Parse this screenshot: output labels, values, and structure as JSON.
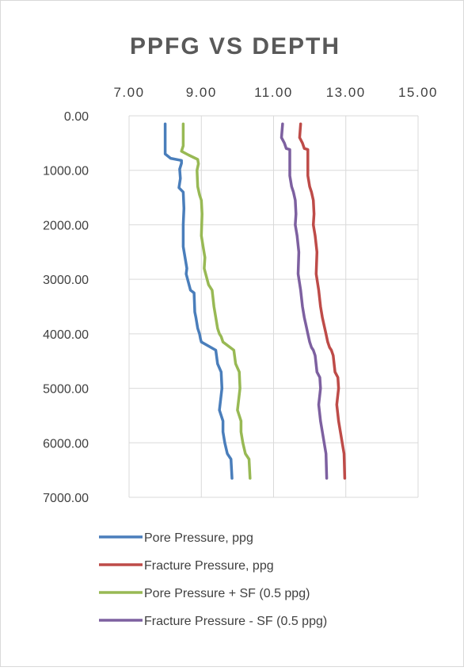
{
  "chart_data": {
    "type": "line",
    "title": "PPFG VS DEPTH",
    "x_axis": {
      "position": "top",
      "range": [
        7,
        15
      ],
      "ticks": [
        "7.00",
        "9.00",
        "11.00",
        "13.00",
        "15.00"
      ],
      "tick_values": [
        7,
        9,
        11,
        13,
        15
      ]
    },
    "y_axis": {
      "reversed": true,
      "range": [
        0,
        7000
      ],
      "ticks": [
        "0.00",
        "1000.00",
        "2000.00",
        "3000.00",
        "4000.00",
        "5000.00",
        "6000.00",
        "7000.00"
      ],
      "tick_values": [
        0,
        1000,
        2000,
        3000,
        4000,
        5000,
        6000,
        7000
      ]
    },
    "grid": true,
    "legend": "bottom",
    "series": [
      {
        "name": "Pore Pressure, ppg",
        "color": "#4a7ebb",
        "points": [
          [
            8.0,
            150
          ],
          [
            8.0,
            700
          ],
          [
            8.15,
            780
          ],
          [
            8.45,
            820
          ],
          [
            8.45,
            870
          ],
          [
            8.4,
            980
          ],
          [
            8.42,
            1150
          ],
          [
            8.38,
            1320
          ],
          [
            8.5,
            1400
          ],
          [
            8.52,
            1700
          ],
          [
            8.5,
            2000
          ],
          [
            8.5,
            2400
          ],
          [
            8.55,
            2600
          ],
          [
            8.6,
            2800
          ],
          [
            8.58,
            2900
          ],
          [
            8.7,
            3200
          ],
          [
            8.8,
            3250
          ],
          [
            8.82,
            3600
          ],
          [
            8.85,
            3700
          ],
          [
            8.9,
            3900
          ],
          [
            8.95,
            4000
          ],
          [
            8.98,
            4100
          ],
          [
            9.0,
            4150
          ],
          [
            9.4,
            4300
          ],
          [
            9.45,
            4550
          ],
          [
            9.55,
            4700
          ],
          [
            9.57,
            5000
          ],
          [
            9.5,
            5400
          ],
          [
            9.6,
            5600
          ],
          [
            9.6,
            5800
          ],
          [
            9.65,
            6000
          ],
          [
            9.72,
            6200
          ],
          [
            9.82,
            6300
          ],
          [
            9.85,
            6650
          ]
        ]
      },
      {
        "name": "Fracture Pressure, ppg",
        "color": "#be4b48",
        "points": [
          [
            11.75,
            150
          ],
          [
            11.72,
            400
          ],
          [
            11.8,
            500
          ],
          [
            11.85,
            600
          ],
          [
            11.95,
            620
          ],
          [
            11.95,
            800
          ],
          [
            11.95,
            1100
          ],
          [
            12.0,
            1300
          ],
          [
            12.05,
            1400
          ],
          [
            12.1,
            1550
          ],
          [
            12.12,
            1800
          ],
          [
            12.1,
            2000
          ],
          [
            12.15,
            2200
          ],
          [
            12.2,
            2500
          ],
          [
            12.18,
            2900
          ],
          [
            12.25,
            3200
          ],
          [
            12.3,
            3500
          ],
          [
            12.35,
            3700
          ],
          [
            12.4,
            3850
          ],
          [
            12.45,
            4000
          ],
          [
            12.5,
            4150
          ],
          [
            12.55,
            4250
          ],
          [
            12.6,
            4300
          ],
          [
            12.65,
            4400
          ],
          [
            12.7,
            4700
          ],
          [
            12.78,
            4800
          ],
          [
            12.8,
            5000
          ],
          [
            12.75,
            5300
          ],
          [
            12.8,
            5600
          ],
          [
            12.85,
            5800
          ],
          [
            12.9,
            6000
          ],
          [
            12.95,
            6200
          ],
          [
            12.97,
            6650
          ]
        ]
      },
      {
        "name": "Pore Pressure + SF (0.5 ppg)",
        "color": "#98b954",
        "points": [
          [
            8.5,
            150
          ],
          [
            8.5,
            550
          ],
          [
            8.45,
            650
          ],
          [
            8.65,
            720
          ],
          [
            8.9,
            800
          ],
          [
            8.92,
            880
          ],
          [
            8.88,
            1000
          ],
          [
            8.9,
            1300
          ],
          [
            8.95,
            1450
          ],
          [
            9.0,
            1550
          ],
          [
            9.02,
            1800
          ],
          [
            9.0,
            2200
          ],
          [
            9.05,
            2400
          ],
          [
            9.1,
            2600
          ],
          [
            9.08,
            2800
          ],
          [
            9.2,
            3100
          ],
          [
            9.3,
            3200
          ],
          [
            9.35,
            3500
          ],
          [
            9.4,
            3700
          ],
          [
            9.45,
            3900
          ],
          [
            9.5,
            4000
          ],
          [
            9.55,
            4050
          ],
          [
            9.6,
            4150
          ],
          [
            9.9,
            4300
          ],
          [
            9.95,
            4550
          ],
          [
            10.05,
            4700
          ],
          [
            10.07,
            5000
          ],
          [
            10.0,
            5400
          ],
          [
            10.1,
            5600
          ],
          [
            10.1,
            5800
          ],
          [
            10.15,
            6000
          ],
          [
            10.22,
            6200
          ],
          [
            10.32,
            6300
          ],
          [
            10.35,
            6650
          ]
        ]
      },
      {
        "name": "Fracture Pressure - SF (0.5 ppg)",
        "color": "#7d60a0",
        "points": [
          [
            11.25,
            150
          ],
          [
            11.22,
            400
          ],
          [
            11.3,
            500
          ],
          [
            11.35,
            600
          ],
          [
            11.45,
            620
          ],
          [
            11.45,
            800
          ],
          [
            11.45,
            1100
          ],
          [
            11.5,
            1300
          ],
          [
            11.55,
            1400
          ],
          [
            11.6,
            1550
          ],
          [
            11.62,
            1800
          ],
          [
            11.6,
            2000
          ],
          [
            11.65,
            2200
          ],
          [
            11.7,
            2500
          ],
          [
            11.68,
            2900
          ],
          [
            11.75,
            3200
          ],
          [
            11.8,
            3500
          ],
          [
            11.85,
            3700
          ],
          [
            11.9,
            3850
          ],
          [
            11.95,
            4000
          ],
          [
            12.0,
            4150
          ],
          [
            12.05,
            4250
          ],
          [
            12.1,
            4300
          ],
          [
            12.15,
            4400
          ],
          [
            12.2,
            4700
          ],
          [
            12.28,
            4800
          ],
          [
            12.3,
            5000
          ],
          [
            12.25,
            5300
          ],
          [
            12.3,
            5600
          ],
          [
            12.35,
            5800
          ],
          [
            12.4,
            6000
          ],
          [
            12.45,
            6200
          ],
          [
            12.47,
            6650
          ]
        ]
      }
    ]
  }
}
